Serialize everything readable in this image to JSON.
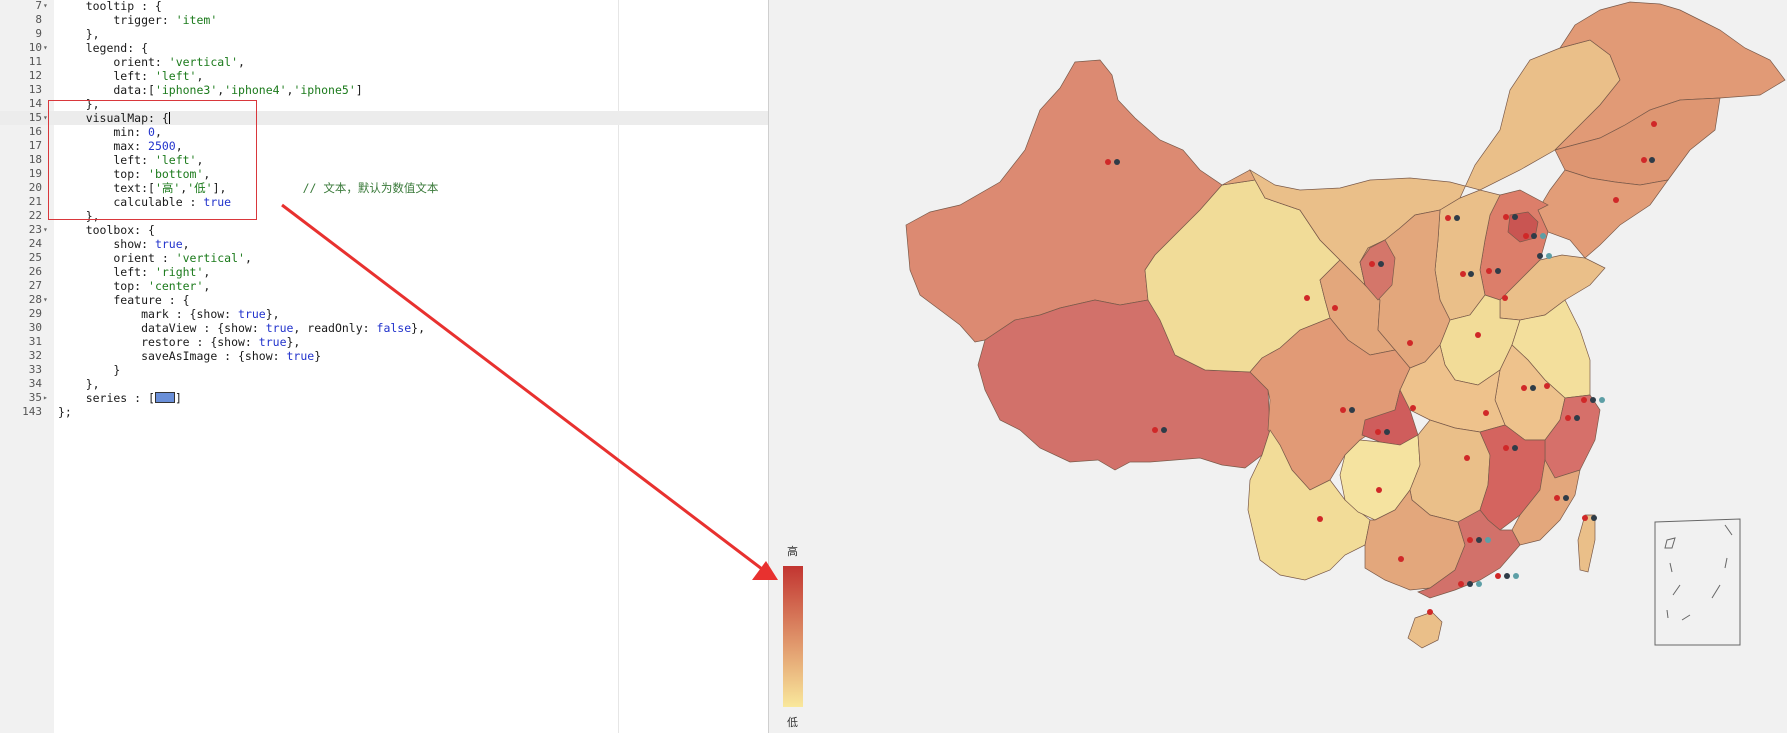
{
  "editor": {
    "lines": [
      {
        "n": "7",
        "fold": "▾",
        "html": "    tooltip : {"
      },
      {
        "n": "8",
        "fold": "",
        "html": "        trigger: <span class=\"s\">'item'</span>"
      },
      {
        "n": "9",
        "fold": "",
        "html": "    },"
      },
      {
        "n": "10",
        "fold": "▾",
        "html": "    legend: {"
      },
      {
        "n": "11",
        "fold": "",
        "html": "        orient: <span class=\"s\">'vertical'</span>,"
      },
      {
        "n": "12",
        "fold": "",
        "html": "        left: <span class=\"s\">'left'</span>,"
      },
      {
        "n": "13",
        "fold": "",
        "html": "        data:[<span class=\"s\">'iphone3'</span>,<span class=\"s\">'iphone4'</span>,<span class=\"s\">'iphone5'</span>]"
      },
      {
        "n": "14",
        "fold": "",
        "html": "    },"
      },
      {
        "n": "15",
        "fold": "▾",
        "html": "    visualMap: {<span id=\"caret\"></span>",
        "active": true
      },
      {
        "n": "16",
        "fold": "",
        "html": "        min: <span class=\"n\">0</span>,"
      },
      {
        "n": "17",
        "fold": "",
        "html": "        max: <span class=\"n\">2500</span>,"
      },
      {
        "n": "18",
        "fold": "",
        "html": "        left: <span class=\"s\">'left'</span>,"
      },
      {
        "n": "19",
        "fold": "",
        "html": "        top: <span class=\"s\">'bottom'</span>,"
      },
      {
        "n": "20",
        "fold": "",
        "html": "        text:[<span class=\"s\">'高'</span>,<span class=\"s\">'低'</span>],           <span class=\"c\">// 文本，默认为数值文本</span>"
      },
      {
        "n": "21",
        "fold": "",
        "html": "        calculable : <span class=\"b\">true</span>"
      },
      {
        "n": "22",
        "fold": "",
        "html": "    },"
      },
      {
        "n": "23",
        "fold": "▾",
        "html": "    toolbox: {"
      },
      {
        "n": "24",
        "fold": "",
        "html": "        show: <span class=\"b\">true</span>,"
      },
      {
        "n": "25",
        "fold": "",
        "html": "        orient : <span class=\"s\">'vertical'</span>,"
      },
      {
        "n": "26",
        "fold": "",
        "html": "        left: <span class=\"s\">'right'</span>,"
      },
      {
        "n": "27",
        "fold": "",
        "html": "        top: <span class=\"s\">'center'</span>,"
      },
      {
        "n": "28",
        "fold": "▾",
        "html": "        feature : {"
      },
      {
        "n": "29",
        "fold": "",
        "html": "            mark : {show: <span class=\"b\">true</span>},"
      },
      {
        "n": "30",
        "fold": "",
        "html": "            dataView : {show: <span class=\"b\">true</span>, readOnly: <span class=\"b\">false</span>},"
      },
      {
        "n": "31",
        "fold": "",
        "html": "            restore : {show: <span class=\"b\">true</span>},"
      },
      {
        "n": "32",
        "fold": "",
        "html": "            saveAsImage : {show: <span class=\"b\">true</span>}"
      },
      {
        "n": "33",
        "fold": "",
        "html": "        }"
      },
      {
        "n": "34",
        "fold": "",
        "html": "    },"
      },
      {
        "n": "35",
        "fold": "▸",
        "html": "    series : [<span class=\"fold-marker\"></span>]"
      },
      {
        "n": "143",
        "fold": "",
        "html": "};"
      }
    ]
  },
  "visual_map": {
    "high_label": "高",
    "low_label": "低",
    "color_high": "#c23531",
    "color_low": "#f9e89c"
  },
  "map": {
    "province_colors": [
      "#d97565",
      "#e3a77c",
      "#d0695f",
      "#f2dc98",
      "#eabf89",
      "#e19a76",
      "#d4766a",
      "#f5e3a0"
    ],
    "marker_colors": [
      "#d02828",
      "#2f3c48",
      "#5d9fa6"
    ]
  }
}
